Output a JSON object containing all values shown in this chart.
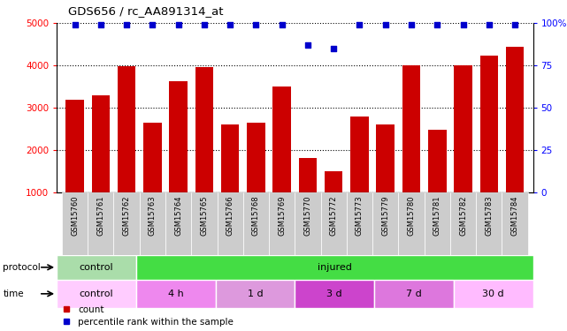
{
  "title": "GDS656 / rc_AA891314_at",
  "samples": [
    "GSM15760",
    "GSM15761",
    "GSM15762",
    "GSM15763",
    "GSM15764",
    "GSM15765",
    "GSM15766",
    "GSM15768",
    "GSM15769",
    "GSM15770",
    "GSM15772",
    "GSM15773",
    "GSM15779",
    "GSM15780",
    "GSM15781",
    "GSM15782",
    "GSM15783",
    "GSM15784"
  ],
  "counts": [
    3180,
    3300,
    3970,
    2650,
    3620,
    3960,
    2600,
    2650,
    3500,
    1800,
    1500,
    2780,
    2600,
    4000,
    2480,
    4000,
    4230,
    4450
  ],
  "percentile_ranks": [
    99,
    99,
    99,
    99,
    99,
    99,
    99,
    99,
    99,
    87,
    85,
    99,
    99,
    99,
    99,
    99,
    99,
    99
  ],
  "ylim_left": [
    1000,
    5000
  ],
  "ylim_right": [
    0,
    100
  ],
  "yticks_left": [
    1000,
    2000,
    3000,
    4000,
    5000
  ],
  "yticks_right": [
    0,
    25,
    50,
    75,
    100
  ],
  "bar_color": "#cc0000",
  "dot_color": "#0000cc",
  "protocol_groups": [
    {
      "label": "control",
      "start": 0,
      "end": 3,
      "color": "#aaddaa"
    },
    {
      "label": "injured",
      "start": 3,
      "end": 18,
      "color": "#44dd44"
    }
  ],
  "time_groups": [
    {
      "label": "control",
      "start": 0,
      "end": 3,
      "color": "#ffccff"
    },
    {
      "label": "4 h",
      "start": 3,
      "end": 6,
      "color": "#ee88ee"
    },
    {
      "label": "1 d",
      "start": 6,
      "end": 9,
      "color": "#dd99dd"
    },
    {
      "label": "3 d",
      "start": 9,
      "end": 12,
      "color": "#cc44cc"
    },
    {
      "label": "7 d",
      "start": 12,
      "end": 15,
      "color": "#dd77dd"
    },
    {
      "label": "30 d",
      "start": 15,
      "end": 18,
      "color": "#ffbbff"
    }
  ],
  "legend_count_label": "count",
  "legend_pct_label": "percentile rank within the sample",
  "background_color": "#ffffff",
  "protocol_label": "protocol",
  "time_label": "time",
  "xtick_bg": "#cccccc",
  "right_axis_top_label": "100%"
}
